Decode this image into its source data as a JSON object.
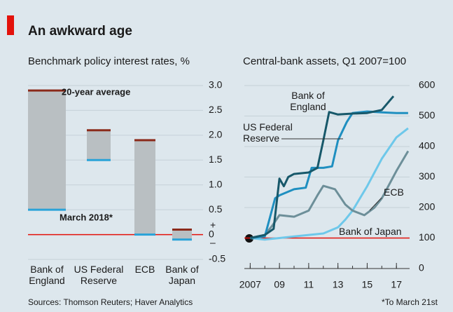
{
  "title": "An awkward age",
  "source": "Sources: Thomson Reuters; Haver Analytics",
  "footnote": "*To March 21st",
  "chart_data": [
    {
      "type": "bar",
      "title": "Benchmark policy interest rates, %",
      "categories": [
        "Bank of England",
        "US Federal Reserve",
        "ECB",
        "Bank of Japan"
      ],
      "series": [
        {
          "name": "20-year average",
          "color": "#8b2a1a",
          "values": [
            2.9,
            2.1,
            1.9,
            0.1
          ]
        },
        {
          "name": "March 2018*",
          "color": "#2aa3d8",
          "values": [
            0.5,
            1.5,
            0,
            -0.1
          ]
        }
      ],
      "range_color": "#b9bfc2",
      "ylim": [
        -0.5,
        3.0
      ],
      "yticks": [
        {
          "value": 3,
          "label": "3.0"
        },
        2.5,
        {
          "value": 2,
          "label": "2.0"
        },
        1.5,
        {
          "value": 1,
          "label": "1.0"
        },
        0.5,
        0,
        -0.5
      ],
      "sign_labels": [
        "+",
        "–"
      ],
      "baseline": 0,
      "baseline_color": "#e3120b",
      "grid": true
    },
    {
      "type": "line",
      "title": "Central-bank assets, Q1 2007=100",
      "series": [
        {
          "name": "Bank of England",
          "color": "#17586a",
          "x": [
            2007,
            2008,
            2008.6,
            2009,
            2009.3,
            2009.6,
            2010,
            2011,
            2011.6,
            2012,
            2012.4,
            2013,
            2014,
            2015,
            2016,
            2016.8
          ],
          "values": [
            100,
            110,
            130,
            295,
            270,
            300,
            310,
            315,
            330,
            420,
            513,
            505,
            508,
            510,
            520,
            565
          ]
        },
        {
          "name": "US Federal Reserve",
          "color": "#1f8fc0",
          "x": [
            2007,
            2008,
            2008.7,
            2009,
            2010,
            2010.8,
            2011.2,
            2012,
            2012.6,
            2013,
            2013.6,
            2014,
            2015,
            2016,
            2017,
            2017.8
          ],
          "values": [
            100,
            105,
            230,
            240,
            260,
            265,
            330,
            330,
            335,
            420,
            480,
            510,
            515,
            512,
            510,
            510
          ]
        },
        {
          "name": "ECB",
          "color": "#6d8f99",
          "x": [
            2007,
            2008,
            2008.5,
            2009,
            2010,
            2011,
            2011.6,
            2012,
            2012.8,
            2013.5,
            2014,
            2014.8,
            2015.5,
            2016,
            2017,
            2017.8
          ],
          "values": [
            100,
            110,
            140,
            175,
            170,
            190,
            240,
            271,
            260,
            210,
            190,
            175,
            200,
            230,
            320,
            385
          ]
        },
        {
          "name": "Bank of Japan",
          "color": "#6ec8ea",
          "x": [
            2007,
            2008,
            2009,
            2010,
            2011,
            2012,
            2013,
            2013.5,
            2014,
            2015,
            2016,
            2017,
            2017.8
          ],
          "values": [
            100,
            95,
            100,
            105,
            110,
            115,
            135,
            160,
            190,
            270,
            360,
            430,
            460
          ]
        }
      ],
      "xlim": [
        2006.6,
        2017.9
      ],
      "xticks": [
        {
          "value": 2007,
          "label": "2007"
        },
        {
          "value": 2009,
          "label": "09"
        },
        {
          "value": 2011,
          "label": "11"
        },
        {
          "value": 2013,
          "label": "13"
        },
        {
          "value": 2015,
          "label": "15"
        },
        {
          "value": 2017,
          "label": "17"
        }
      ],
      "ylim": [
        0,
        600
      ],
      "yticks": [
        0,
        100,
        200,
        300,
        400,
        500,
        600
      ],
      "baseline": 100,
      "baseline_color": "#e3120b",
      "grid": true
    }
  ]
}
